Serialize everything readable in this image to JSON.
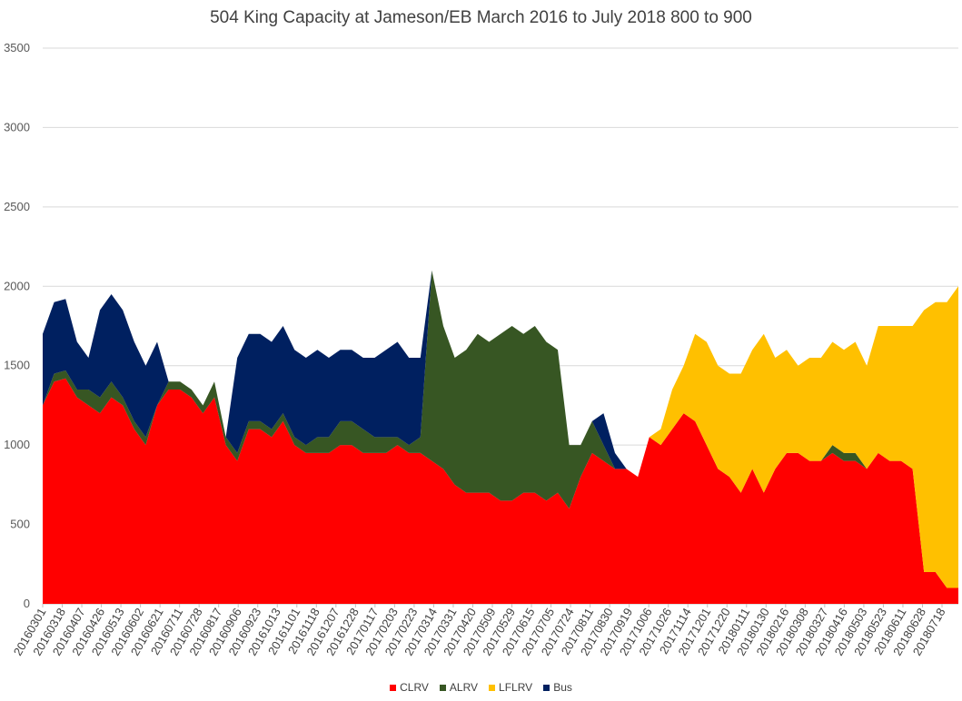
{
  "chart_data": {
    "type": "area",
    "stacked": true,
    "title": "504 King Capacity at Jameson/EB March 2016 to July 2018  800 to 900",
    "xlabel": "",
    "ylabel": "",
    "ylim": [
      0,
      3500
    ],
    "yticks": [
      0,
      500,
      1000,
      1500,
      2000,
      2500,
      3000,
      3500
    ],
    "grid": true,
    "legend_position": "bottom",
    "x_tick_labels": [
      "20160301",
      "20160318",
      "20160407",
      "20160426",
      "20160513",
      "20160602",
      "20160621",
      "20160711",
      "20160728",
      "20160817",
      "20160906",
      "20160923",
      "20161013",
      "20161101",
      "20161118",
      "20161207",
      "20161228",
      "20170117",
      "20170203",
      "20170223",
      "20170314",
      "20170331",
      "20170420",
      "20170509",
      "20170529",
      "20170615",
      "20170705",
      "20170724",
      "20170811",
      "20170830",
      "20170919",
      "20171006",
      "20171026",
      "20171114",
      "20171201",
      "20171220",
      "20180111",
      "20180130",
      "20180216",
      "20180308",
      "20180327",
      "20180416",
      "20180503",
      "20180523",
      "20180611",
      "20180628",
      "20180718"
    ],
    "series_colors": {
      "CLRV": "#ff0000",
      "ALRV": "#375623",
      "LFLRV": "#ffc000",
      "Bus": "#002060"
    },
    "series": [
      {
        "name": "CLRV",
        "values": [
          1250,
          1400,
          1420,
          1300,
          1250,
          1200,
          1300,
          1250,
          1100,
          1000,
          1250,
          1350,
          1350,
          1300,
          1200,
          1300,
          1000,
          900,
          1100,
          1100,
          1050,
          1150,
          1000,
          950,
          950,
          950,
          1000,
          1000,
          950,
          950,
          950,
          1000,
          950,
          950,
          900,
          850,
          750,
          700,
          700,
          700,
          650,
          650,
          700,
          700,
          650,
          700,
          600,
          800,
          950,
          900,
          850,
          850,
          800,
          1050,
          1000,
          1100,
          1200,
          1150,
          1000,
          850,
          800,
          700,
          850,
          700,
          850,
          950,
          950,
          900,
          900,
          950,
          900,
          900,
          850,
          950,
          900,
          900,
          850,
          200,
          200,
          100,
          100
        ]
      },
      {
        "name": "ALRV",
        "values": [
          0,
          50,
          50,
          50,
          100,
          100,
          100,
          50,
          50,
          50,
          0,
          50,
          50,
          50,
          50,
          100,
          50,
          50,
          50,
          50,
          50,
          50,
          50,
          50,
          100,
          100,
          150,
          150,
          150,
          100,
          100,
          50,
          50,
          100,
          1200,
          900,
          800,
          900,
          1000,
          950,
          1050,
          1100,
          1000,
          1050,
          1000,
          900,
          400,
          200,
          200,
          100,
          0,
          0,
          0,
          0,
          0,
          0,
          0,
          0,
          0,
          0,
          0,
          0,
          0,
          0,
          0,
          0,
          0,
          0,
          0,
          50,
          50,
          50,
          0,
          0,
          0,
          0,
          0,
          0,
          0,
          0,
          0
        ]
      },
      {
        "name": "LFLRV",
        "values": [
          0,
          0,
          0,
          0,
          0,
          0,
          0,
          0,
          0,
          0,
          0,
          0,
          0,
          0,
          0,
          0,
          0,
          0,
          0,
          0,
          0,
          0,
          0,
          0,
          0,
          0,
          0,
          0,
          0,
          0,
          0,
          0,
          0,
          0,
          0,
          0,
          0,
          0,
          0,
          0,
          0,
          0,
          0,
          0,
          0,
          0,
          0,
          0,
          0,
          0,
          0,
          0,
          0,
          0,
          100,
          250,
          300,
          550,
          650,
          650,
          650,
          750,
          750,
          1000,
          700,
          650,
          550,
          650,
          650,
          650,
          650,
          700,
          650,
          800,
          850,
          850,
          900,
          1650,
          1700,
          1800,
          1900
        ]
      },
      {
        "name": "Bus",
        "values": [
          450,
          450,
          450,
          300,
          200,
          550,
          550,
          550,
          500,
          450,
          400,
          0,
          0,
          0,
          0,
          0,
          0,
          600,
          550,
          550,
          550,
          550,
          550,
          550,
          550,
          500,
          450,
          450,
          450,
          500,
          550,
          600,
          550,
          500,
          0,
          0,
          0,
          0,
          0,
          0,
          0,
          0,
          0,
          0,
          0,
          0,
          0,
          0,
          0,
          200,
          100,
          0,
          0,
          0,
          0,
          0,
          0,
          0,
          0,
          0,
          0,
          0,
          0,
          0,
          0,
          0,
          0,
          0,
          0,
          0,
          0,
          0,
          0,
          0,
          0,
          0,
          0,
          0,
          0,
          0,
          0
        ]
      }
    ]
  }
}
